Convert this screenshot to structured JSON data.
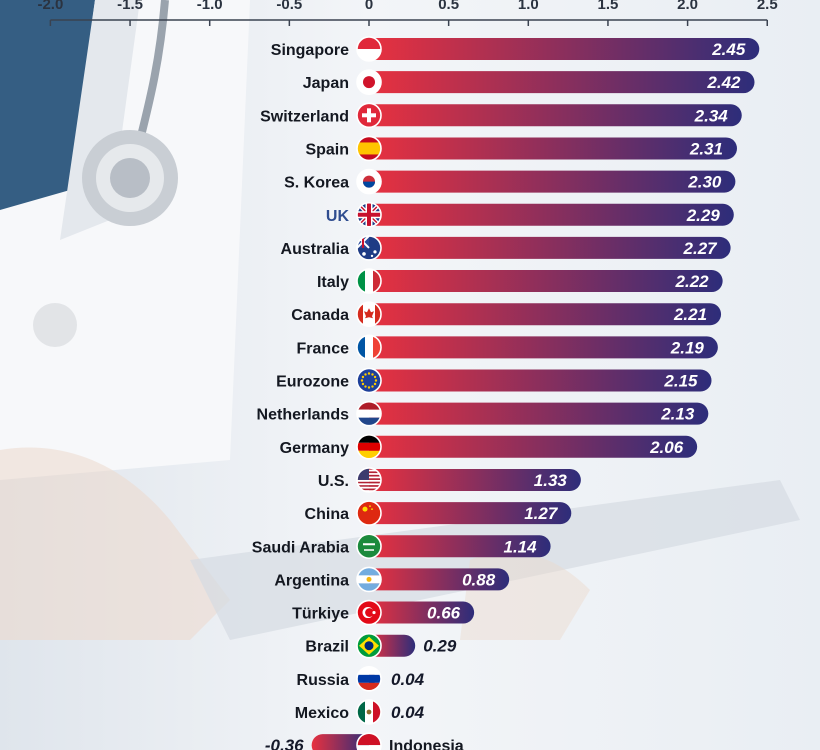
{
  "colors": {
    "bar_start": "#e8313f",
    "bar_end": "#2d2d7a",
    "highlight_label": "#2f4d8f",
    "axis_text": "#2b3340"
  },
  "chart_data": {
    "type": "bar",
    "orientation": "horizontal",
    "title": "",
    "xlabel": "",
    "ylabel": "",
    "xlim": [
      -2.0,
      2.5
    ],
    "x_ticks": [
      "-2.0",
      "-1.5",
      "-1.0",
      "-0.5",
      "0",
      "0.5",
      "1.0",
      "1.5",
      "2.0",
      "2.5"
    ],
    "x_tick_values": [
      -2.0,
      -1.5,
      -1.0,
      -0.5,
      0,
      0.5,
      1.0,
      1.5,
      2.0,
      2.5
    ],
    "highlight": "UK",
    "categories": [
      "Singapore",
      "Japan",
      "Switzerland",
      "Spain",
      "S. Korea",
      "UK",
      "Australia",
      "Italy",
      "Canada",
      "France",
      "Eurozone",
      "Netherlands",
      "Germany",
      "U.S.",
      "China",
      "Saudi Arabia",
      "Argentina",
      "Türkiye",
      "Brazil",
      "Russia",
      "Mexico",
      "Indonesia"
    ],
    "value_labels": [
      "2.45",
      "2.42",
      "2.34",
      "2.31",
      "2.30",
      "2.29",
      "2.27",
      "2.22",
      "2.21",
      "2.19",
      "2.15",
      "2.13",
      "2.06",
      "1.33",
      "1.27",
      "1.14",
      "0.88",
      "0.66",
      "0.29",
      "0.04",
      "0.04",
      "-0.36"
    ],
    "values": [
      2.45,
      2.42,
      2.34,
      2.31,
      2.3,
      2.29,
      2.27,
      2.22,
      2.21,
      2.19,
      2.15,
      2.13,
      2.06,
      1.33,
      1.27,
      1.14,
      0.88,
      0.66,
      0.29,
      0.04,
      0.04,
      -0.36
    ],
    "flag_icons": [
      "flag-singapore-icon",
      "flag-japan-icon",
      "flag-switzerland-icon",
      "flag-spain-icon",
      "flag-south-korea-icon",
      "flag-uk-icon",
      "flag-australia-icon",
      "flag-italy-icon",
      "flag-canada-icon",
      "flag-france-icon",
      "flag-eu-icon",
      "flag-netherlands-icon",
      "flag-germany-icon",
      "flag-us-icon",
      "flag-china-icon",
      "flag-saudi-arabia-icon",
      "flag-argentina-icon",
      "flag-turkiye-icon",
      "flag-brazil-icon",
      "flag-russia-icon",
      "flag-mexico-icon",
      "flag-indonesia-icon"
    ]
  }
}
